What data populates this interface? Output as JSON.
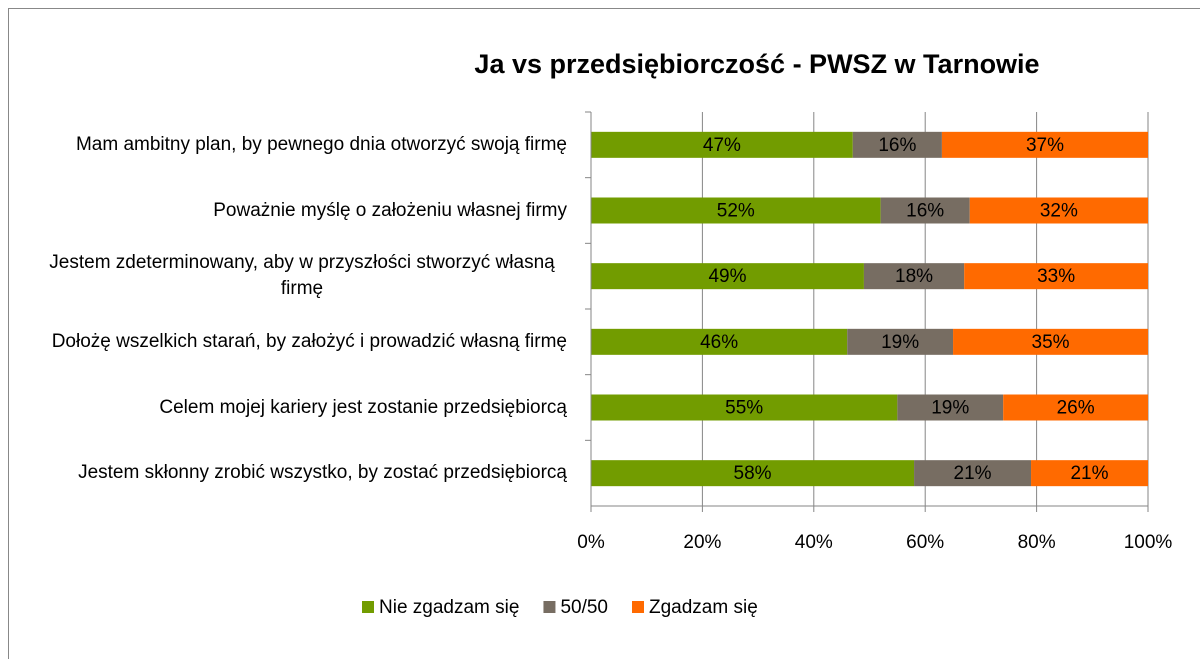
{
  "chart_data": {
    "type": "stacked_bar_horizontal",
    "title": "Ja vs przedsiębiorczość - PWSZ w Tarnowie",
    "categories": [
      "Mam ambitny plan, by pewnego dnia otworzyć swoją firmę",
      "Poważnie myślę o założeniu własnej firmy",
      "Jestem zdeterminowany, aby w przyszłości stworzyć własną firmę",
      "Dołożę wszelkich starań, by założyć i prowadzić własną firmę",
      "Celem mojej kariery jest zostanie przedsiębiorcą",
      "Jestem skłonny zrobić wszystko, by zostać przedsiębiorcą"
    ],
    "series": [
      {
        "name": "Nie zgadzam się",
        "color": "#729c00",
        "values": [
          47,
          52,
          49,
          46,
          55,
          58
        ],
        "value_labels": [
          "47%",
          "52%",
          "49%",
          "46%",
          "55%",
          "58%"
        ]
      },
      {
        "name": "50/50",
        "color": "#776d62",
        "values": [
          16,
          16,
          18,
          19,
          19,
          21
        ],
        "value_labels": [
          "16%",
          "16%",
          "18%",
          "19%",
          "19%",
          "21%"
        ]
      },
      {
        "name": "Zgadzam się",
        "color": "#ff6a00",
        "values": [
          37,
          32,
          33,
          35,
          26,
          21
        ],
        "value_labels": [
          "37%",
          "32%",
          "33%",
          "35%",
          "26%",
          "21%"
        ]
      }
    ],
    "xlim": [
      0,
      100
    ],
    "xticks": [
      {
        "value": 0,
        "label": "0%"
      },
      {
        "value": 20,
        "label": "20%"
      },
      {
        "value": 40,
        "label": "40%"
      },
      {
        "value": 60,
        "label": "60%"
      },
      {
        "value": 80,
        "label": "80%"
      },
      {
        "value": 100,
        "label": "100%"
      }
    ],
    "grid": true,
    "legend": "bottom"
  }
}
